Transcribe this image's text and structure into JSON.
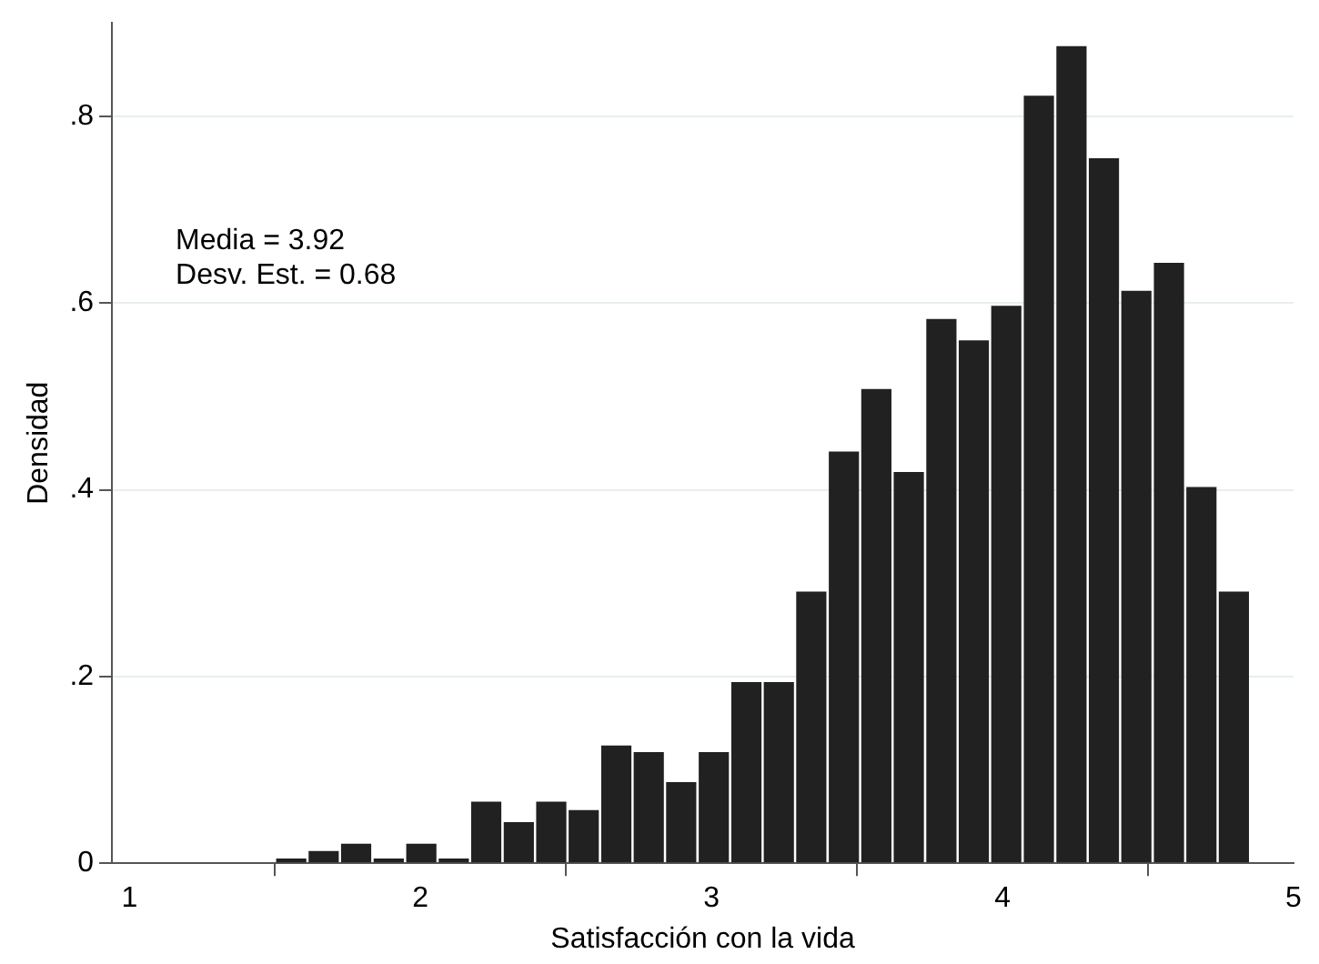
{
  "chart_data": {
    "type": "histogram",
    "xlabel": "Satisfacción con la vida",
    "ylabel": "Densidad",
    "annotations": [
      "Media = 3.92",
      "Desv. Est. = 0.68"
    ],
    "bins": [
      1.5,
      1.612,
      1.723,
      1.835,
      1.947,
      2.059,
      2.17,
      2.282,
      2.394,
      2.505,
      2.617,
      2.729,
      2.84,
      2.952,
      3.064,
      3.176,
      3.287,
      3.399,
      3.511,
      3.622,
      3.734,
      3.846,
      3.957,
      4.069,
      4.181,
      4.293,
      4.404,
      4.516,
      4.628,
      4.739,
      4.851
    ],
    "values": [
      0.005,
      0.013,
      0.021,
      0.005,
      0.021,
      0.005,
      0.066,
      0.044,
      0.066,
      0.057,
      0.126,
      0.119,
      0.087,
      0.119,
      0.194,
      0.194,
      0.291,
      0.441,
      0.508,
      0.419,
      0.583,
      0.56,
      0.597,
      0.822,
      0.875,
      0.755,
      0.613,
      0.643,
      0.403,
      0.291
    ],
    "color": "#212121",
    "xlim": [
      0.94,
      5
    ],
    "xticks": [
      1,
      2,
      3,
      4,
      5
    ],
    "ylim": [
      0,
      0.9
    ],
    "yticks": [
      {
        "value": 0,
        "label": "0"
      },
      {
        "value": 0.2,
        "label": ".2"
      },
      {
        "value": 0.4,
        "label": ".4"
      },
      {
        "value": 0.6,
        "label": ".6"
      },
      {
        "value": 0.8,
        "label": ".8"
      }
    ],
    "grid": "y"
  }
}
